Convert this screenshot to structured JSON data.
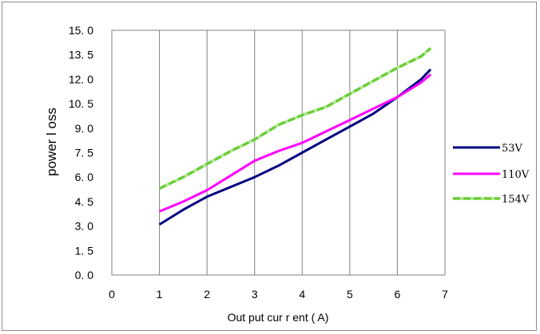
{
  "chart_data": {
    "type": "line",
    "xlabel": "Out put  cur r ent ( A)",
    "ylabel": "power  l oss",
    "xlim": [
      0,
      7
    ],
    "ylim": [
      0,
      15
    ],
    "x_ticks": [
      "0",
      "1",
      "2",
      "3",
      "4",
      "5",
      "6",
      "7"
    ],
    "y_ticks": [
      "0. 0",
      "1. 5",
      "3. 0",
      "4. 5",
      "6. 0",
      "7. 5",
      "9. 0",
      "10. 5",
      "12. 0",
      "13. 5",
      "15. 0"
    ],
    "grid": "vertical",
    "legend_position": "right",
    "series": [
      {
        "name": "53V",
        "color": "#000080",
        "dash": "solid",
        "x": [
          1.0,
          1.5,
          2.0,
          2.5,
          3.0,
          3.5,
          4.0,
          4.5,
          5.0,
          5.5,
          6.0,
          6.5,
          6.7
        ],
        "y": [
          3.1,
          4.0,
          4.8,
          5.4,
          6.0,
          6.7,
          7.5,
          8.3,
          9.1,
          9.9,
          10.9,
          12.0,
          12.6
        ]
      },
      {
        "name": "110V",
        "color": "#ff00ff",
        "dash": "solid",
        "x": [
          1.0,
          1.5,
          2.0,
          2.5,
          3.0,
          3.5,
          4.0,
          4.5,
          5.0,
          5.5,
          6.0,
          6.5,
          6.7
        ],
        "y": [
          3.9,
          4.5,
          5.2,
          6.1,
          7.0,
          7.6,
          8.1,
          8.8,
          9.5,
          10.2,
          10.9,
          11.8,
          12.3
        ]
      },
      {
        "name": "154V",
        "color": "#66cc33",
        "dash": "dashed",
        "x": [
          1.0,
          1.5,
          2.0,
          2.5,
          3.0,
          3.5,
          4.0,
          4.5,
          5.0,
          5.5,
          6.0,
          6.5,
          6.7
        ],
        "y": [
          5.3,
          6.0,
          6.8,
          7.6,
          8.3,
          9.2,
          9.8,
          10.3,
          11.1,
          11.9,
          12.7,
          13.4,
          13.9
        ]
      }
    ]
  }
}
